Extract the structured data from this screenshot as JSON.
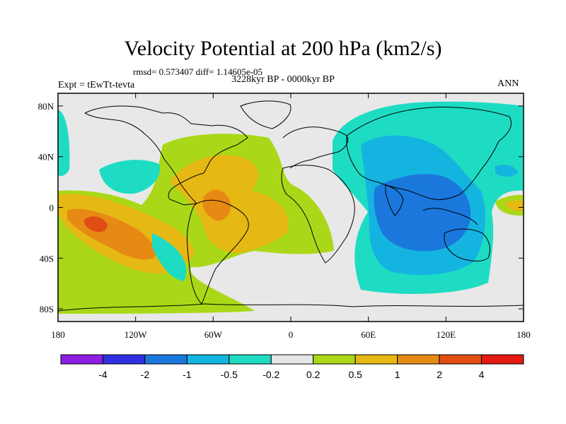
{
  "title": "Velocity Potential at 200 hPa (km2/s)",
  "stats_line": "rmsd= 0.573407 diff= 1.14605e-05",
  "period": "3228kyr BP - 0000kyr BP",
  "experiment": "Expt = tEwTt-tevta",
  "season": "ANN",
  "map": {
    "projection": "cylindrical-equidistant",
    "lon_range": [
      -180,
      180
    ],
    "lat_range": [
      -90,
      90
    ],
    "lat_ticks": [
      {
        "value": 80,
        "label": "80N"
      },
      {
        "value": 40,
        "label": "40N"
      },
      {
        "value": 0,
        "label": "0"
      },
      {
        "value": -40,
        "label": "40S"
      },
      {
        "value": -80,
        "label": "80S"
      }
    ],
    "lon_ticks": [
      {
        "value": -180,
        "label": "180"
      },
      {
        "value": -120,
        "label": "120W"
      },
      {
        "value": -60,
        "label": "60W"
      },
      {
        "value": 0,
        "label": "0"
      },
      {
        "value": 60,
        "label": "60E"
      },
      {
        "value": 120,
        "label": "120E"
      },
      {
        "value": 180,
        "label": "180"
      }
    ],
    "background_color": "#e8e8e8"
  },
  "colorbar": {
    "colors": [
      "#8e1fe0",
      "#3030e0",
      "#1a78dc",
      "#14b4e0",
      "#1edcc4",
      "#e6e6e6",
      "#aad818",
      "#e6b814",
      "#e68a14",
      "#e04e14",
      "#e41a12"
    ],
    "labels": [
      "-4",
      "-2",
      "-1",
      "-0.5",
      "-0.2",
      "0.2",
      "0.5",
      "1",
      "2",
      "4"
    ]
  }
}
